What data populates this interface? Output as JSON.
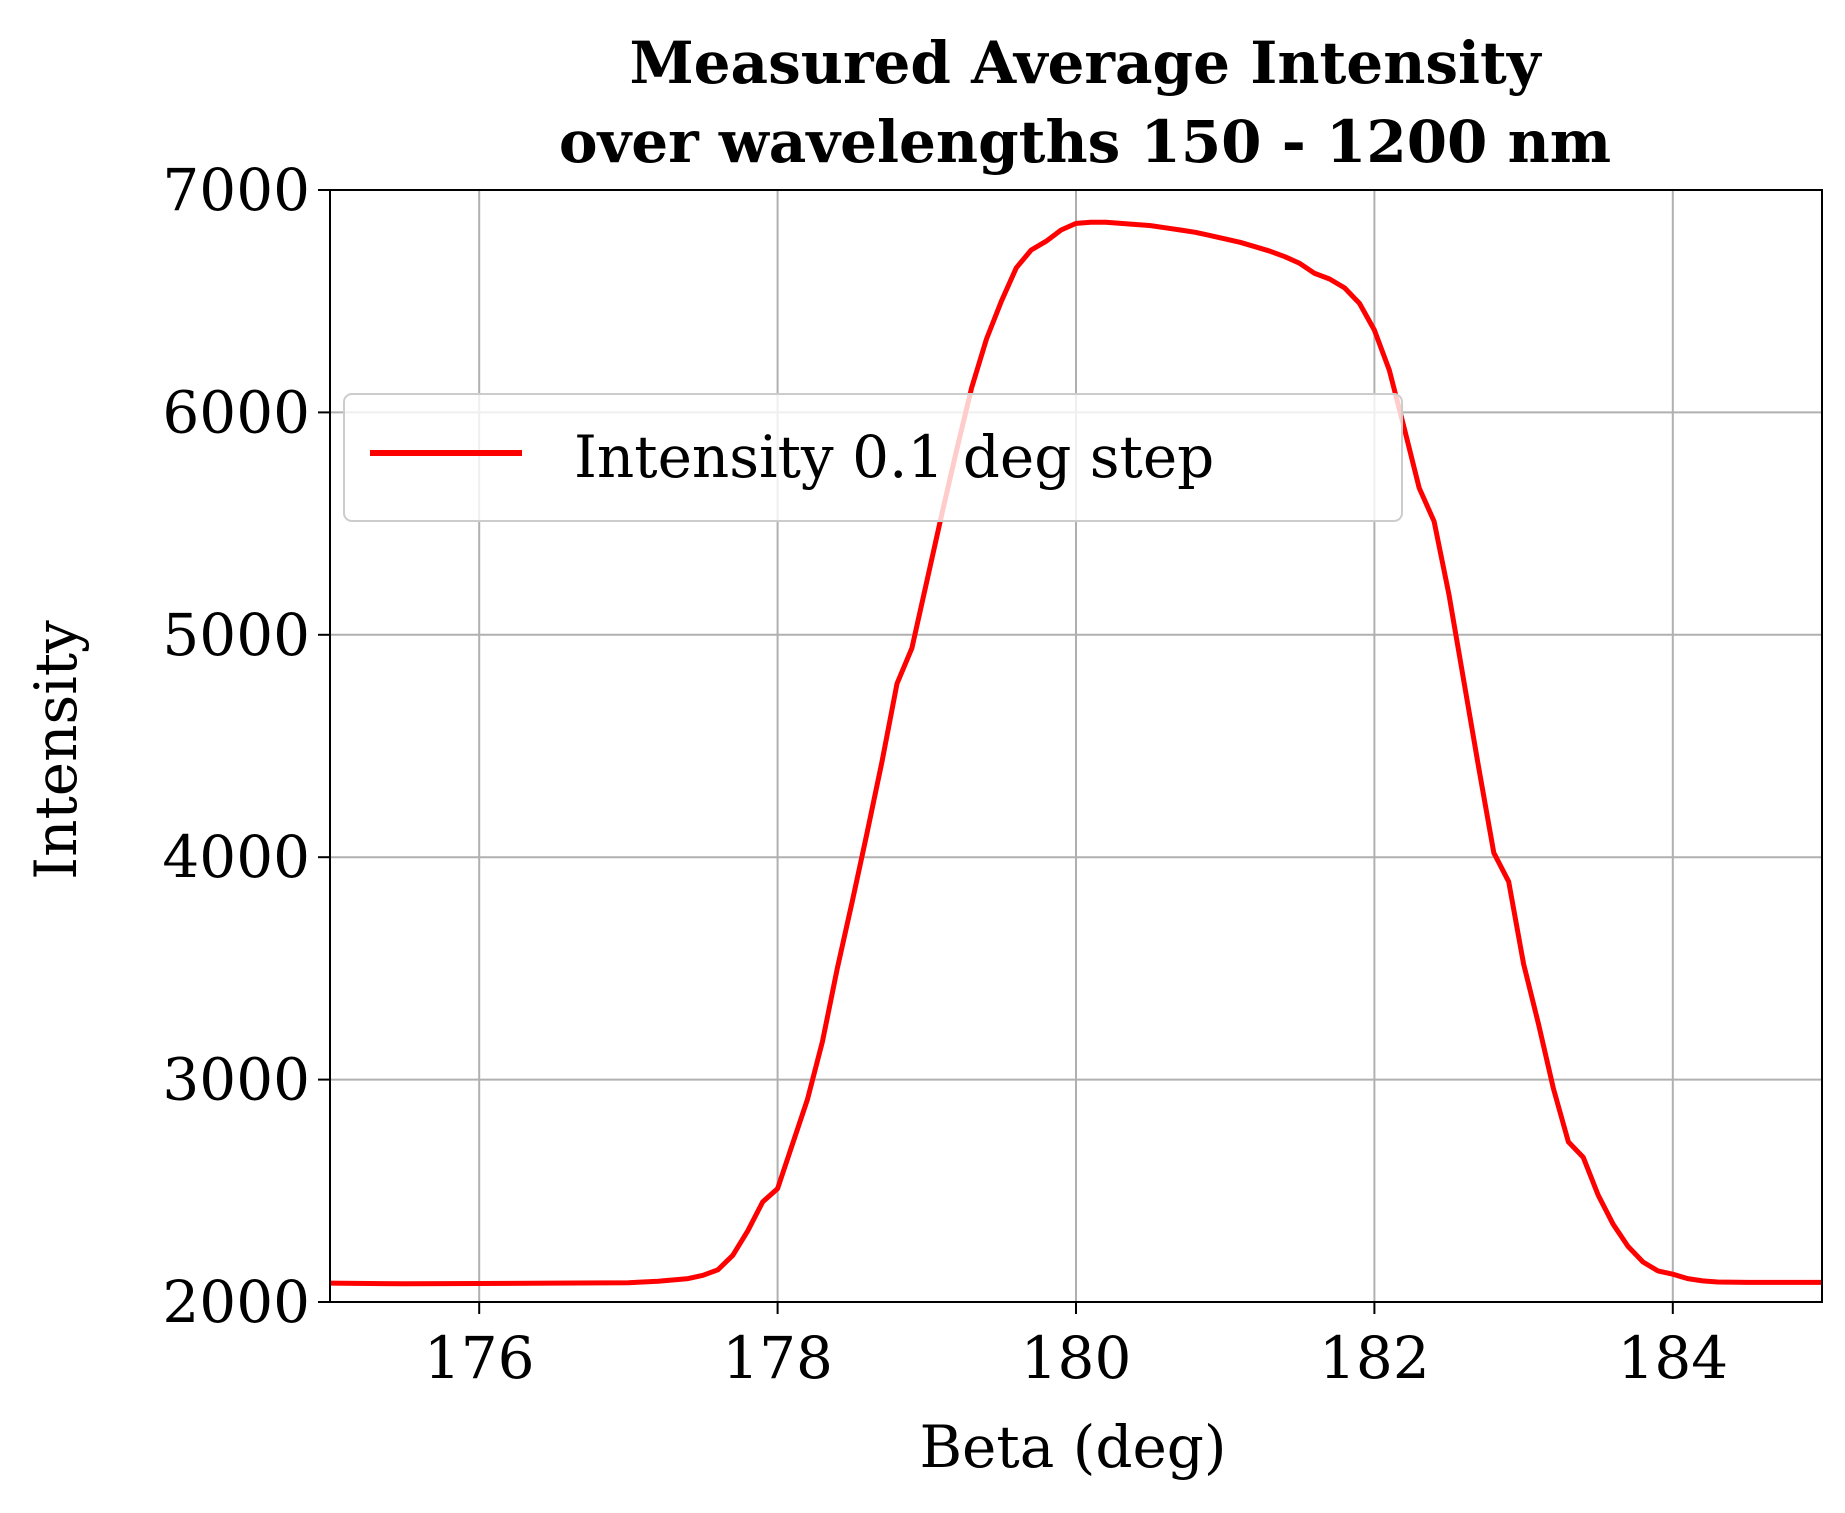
{
  "chart_data": {
    "type": "line",
    "title": [
      "Measured Average Intensity",
      "over wavelengths 150 - 1200 nm"
    ],
    "xlabel": "Beta (deg)",
    "ylabel": "Intensity",
    "xlim": [
      175,
      185
    ],
    "ylim": [
      2000,
      7000
    ],
    "xticks": [
      176,
      178,
      180,
      182,
      184
    ],
    "xtick_labels": [
      "176",
      "178",
      "180",
      "182",
      "184"
    ],
    "yticks": [
      2000,
      3000,
      4000,
      5000,
      6000,
      7000
    ],
    "ytick_labels": [
      "2000",
      "3000",
      "4000",
      "5000",
      "6000",
      "7000"
    ],
    "grid": true,
    "legend_position": "upper-left",
    "series": [
      {
        "name": "Intensity 0.1 deg step",
        "color": "#ff0000",
        "x": [
          175.0,
          175.5,
          176.0,
          176.5,
          177.0,
          177.2,
          177.4,
          177.5,
          177.6,
          177.7,
          177.8,
          177.9,
          178.0,
          178.1,
          178.2,
          178.3,
          178.4,
          178.5,
          178.6,
          178.7,
          178.8,
          178.9,
          179.0,
          179.1,
          179.2,
          179.3,
          179.4,
          179.5,
          179.6,
          179.7,
          179.8,
          179.9,
          180.0,
          180.1,
          180.2,
          180.3,
          180.4,
          180.5,
          180.6,
          180.7,
          180.8,
          180.9,
          181.0,
          181.1,
          181.2,
          181.3,
          181.4,
          181.5,
          181.6,
          181.7,
          181.8,
          181.9,
          182.0,
          182.1,
          182.2,
          182.3,
          182.4,
          182.5,
          182.6,
          182.7,
          182.8,
          182.9,
          183.0,
          183.1,
          183.2,
          183.3,
          183.4,
          183.5,
          183.6,
          183.7,
          183.8,
          183.9,
          184.0,
          184.1,
          184.2,
          184.3,
          184.5,
          185.0
        ],
        "y": [
          2085,
          2082,
          2083,
          2085,
          2087,
          2093,
          2105,
          2120,
          2145,
          2210,
          2320,
          2450,
          2510,
          2710,
          2910,
          3170,
          3500,
          3800,
          4110,
          4430,
          4780,
          4940,
          5240,
          5540,
          5830,
          6110,
          6330,
          6500,
          6650,
          6730,
          6770,
          6820,
          6850,
          6855,
          6855,
          6850,
          6845,
          6840,
          6830,
          6820,
          6810,
          6795,
          6780,
          6765,
          6745,
          6725,
          6700,
          6670,
          6625,
          6600,
          6560,
          6490,
          6370,
          6190,
          5930,
          5660,
          5510,
          5180,
          4790,
          4400,
          4020,
          3890,
          3520,
          3250,
          2960,
          2720,
          2650,
          2480,
          2350,
          2250,
          2180,
          2140,
          2125,
          2105,
          2095,
          2090,
          2088,
          2088
        ]
      }
    ]
  }
}
